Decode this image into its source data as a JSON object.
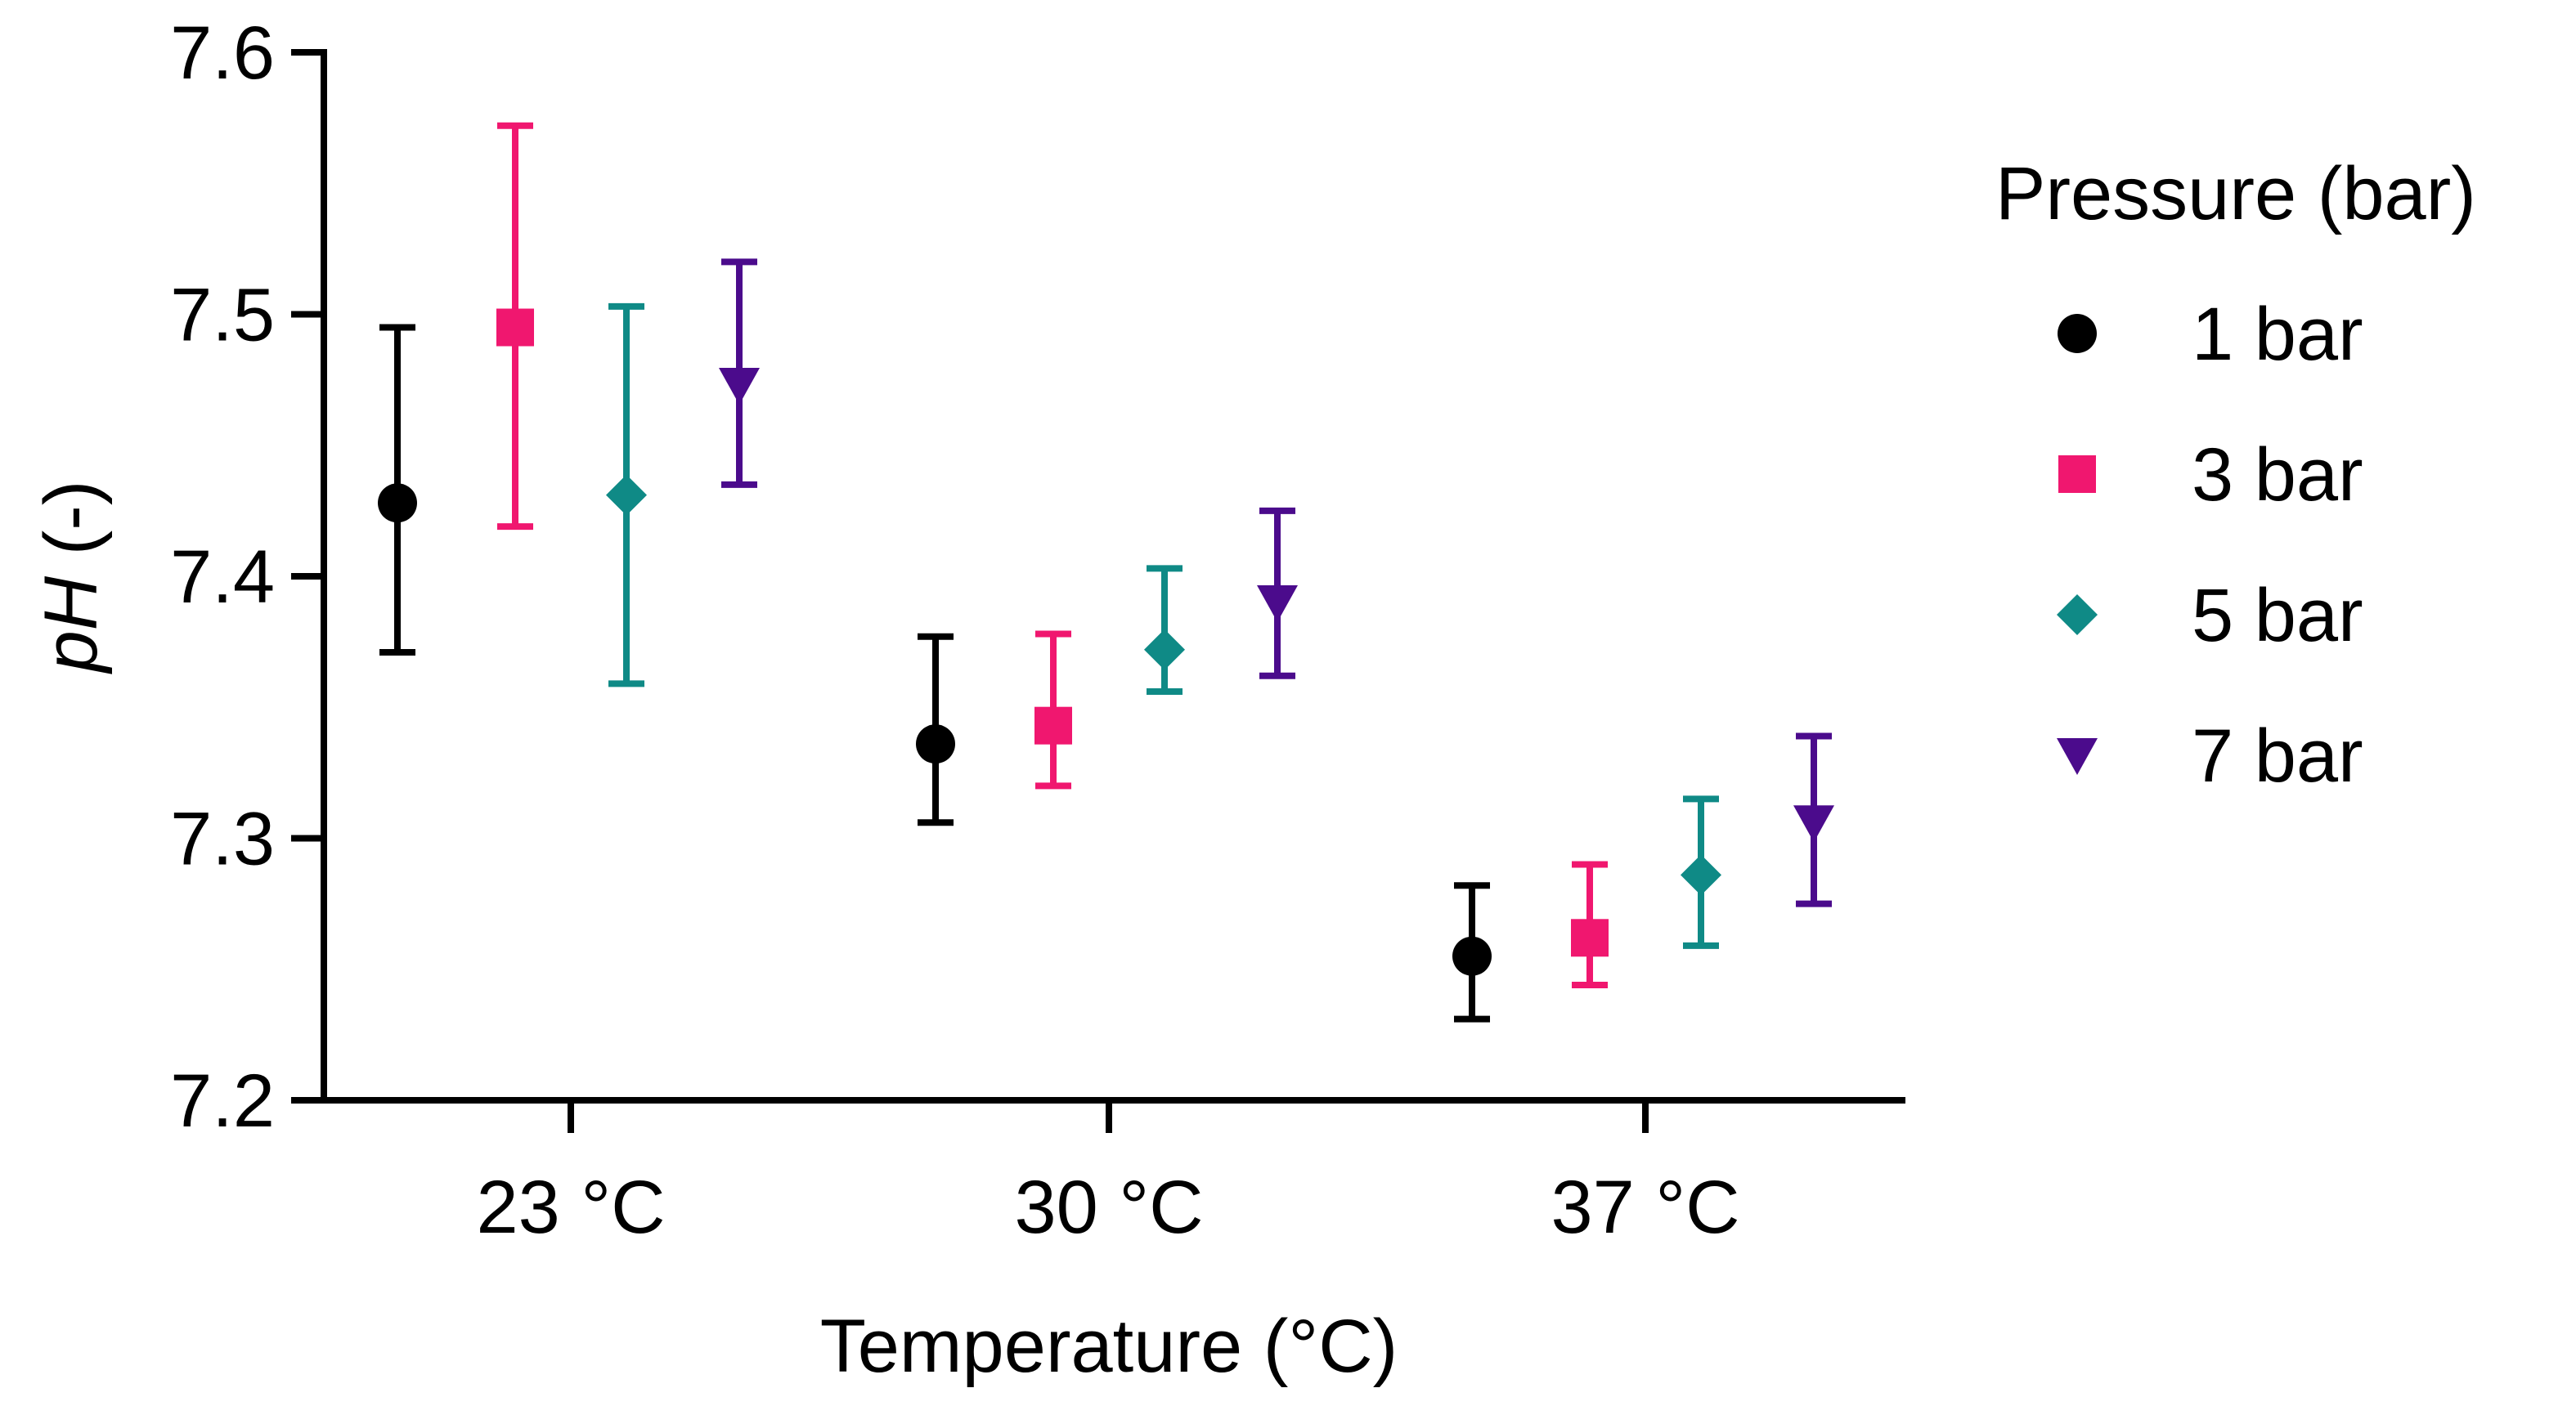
{
  "chart_data": {
    "type": "scatter",
    "subtype": "grouped points with error bars",
    "title": "",
    "xlabel": "Temperature (°C)",
    "ylabel_italic": "pH",
    "ylabel_rest": " (-)",
    "categories": [
      "23 °C",
      "30 °C",
      "37 °C"
    ],
    "ylim": [
      7.2,
      7.6
    ],
    "yticks": [
      "7.2",
      "7.3",
      "7.4",
      "7.5",
      "7.6"
    ],
    "legend_title": "Pressure (bar)",
    "legend_position": "right",
    "series": [
      {
        "name": "1 bar",
        "marker": "circle",
        "color": "#000000",
        "values": [
          7.428,
          7.336,
          7.255
        ],
        "err_low": [
          7.371,
          7.306,
          7.231
        ],
        "err_high": [
          7.495,
          7.377,
          7.282
        ]
      },
      {
        "name": "3 bar",
        "marker": "square",
        "color": "#f0176f",
        "values": [
          7.495,
          7.343,
          7.262
        ],
        "err_low": [
          7.419,
          7.32,
          7.244
        ],
        "err_high": [
          7.572,
          7.378,
          7.29
        ]
      },
      {
        "name": "5 bar",
        "marker": "diamond",
        "color": "#0f8a86",
        "values": [
          7.431,
          7.372,
          7.286
        ],
        "err_low": [
          7.359,
          7.356,
          7.259
        ],
        "err_high": [
          7.503,
          7.403,
          7.315
        ]
      },
      {
        "name": "7 bar",
        "marker": "triangle-down",
        "color": "#4b0b8c",
        "values": [
          7.473,
          7.39,
          7.306
        ],
        "err_low": [
          7.435,
          7.362,
          7.275
        ],
        "err_high": [
          7.52,
          7.425,
          7.339
        ]
      }
    ]
  }
}
